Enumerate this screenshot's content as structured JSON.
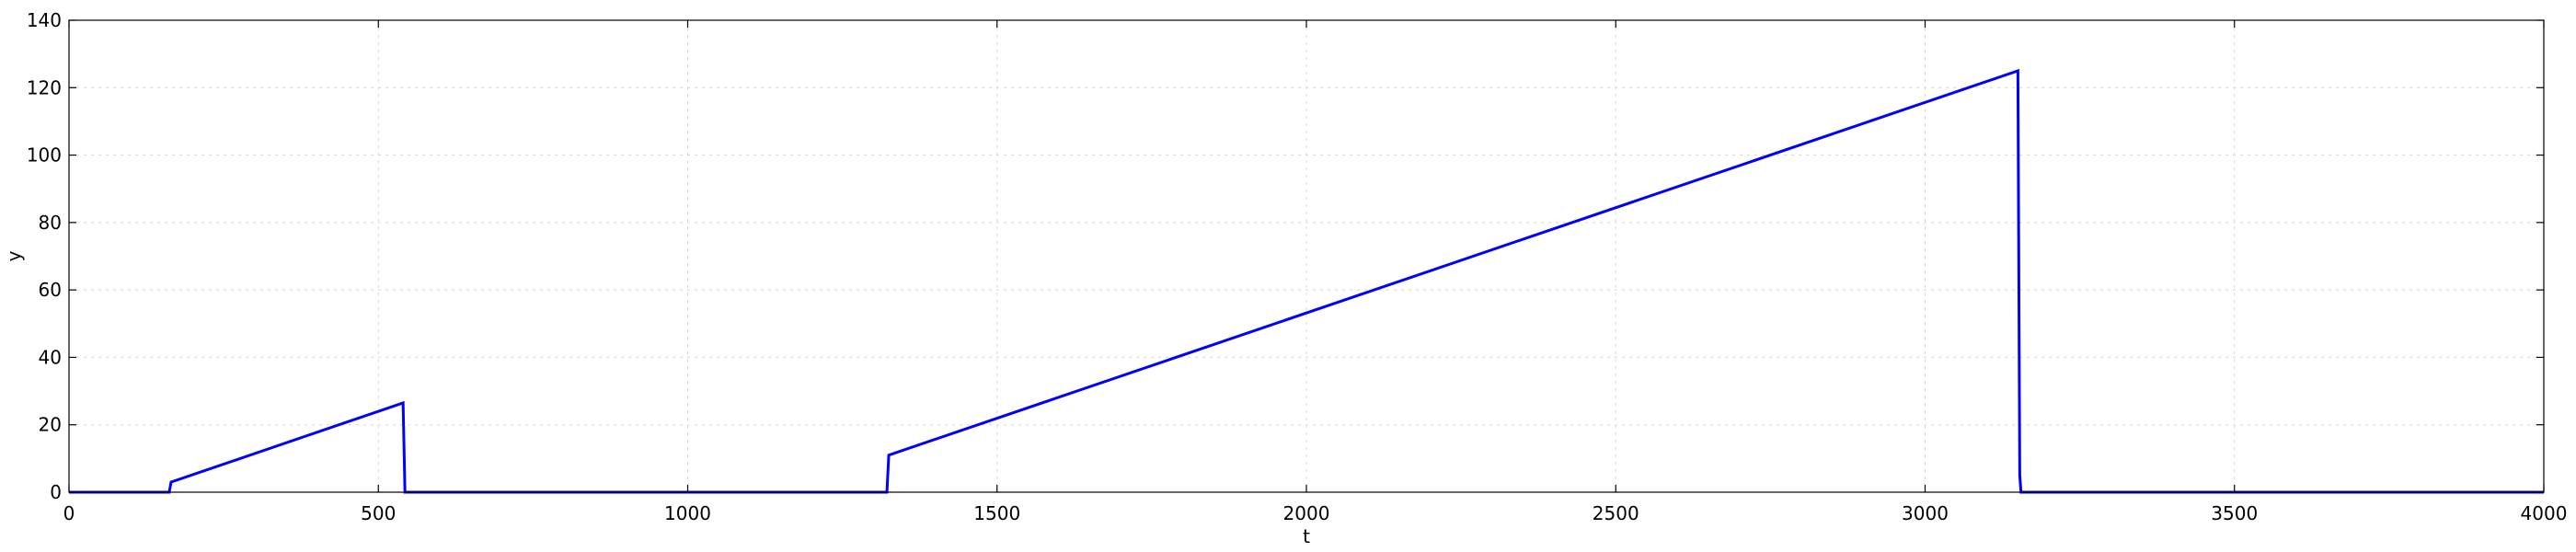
{
  "chart_data": {
    "type": "line",
    "xlabel": "t",
    "ylabel": "y",
    "xlim": [
      0,
      4000
    ],
    "ylim": [
      0,
      140
    ],
    "xticks": [
      0,
      500,
      1000,
      1500,
      2000,
      2500,
      3000,
      3500,
      4000
    ],
    "yticks": [
      0,
      20,
      40,
      60,
      80,
      100,
      120,
      140
    ],
    "grid": true,
    "series": [
      {
        "color": "#0000ff",
        "x": [
          0,
          162,
          165,
          540,
          543,
          550,
          1322,
          1325,
          3150,
          3153,
          3155,
          3158,
          4000
        ],
        "y": [
          0,
          0,
          3,
          26.5,
          0,
          0,
          0,
          11,
          125,
          5,
          0,
          0,
          0
        ]
      }
    ]
  }
}
